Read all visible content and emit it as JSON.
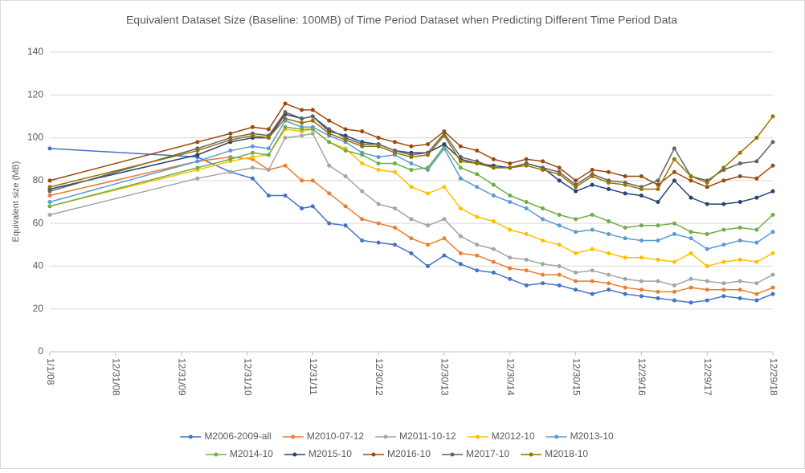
{
  "chart_data": {
    "type": "line",
    "title": "Equivalent  Dataset Size (Baseline: 100MB) of Time Period Dataset when Predicting Different Time Period Data",
    "y_label": "Equivalent size (MB)",
    "x": [
      "2008-01-01",
      "2010-03-31",
      "2010-09-30",
      "2011-01-31",
      "2011-04-30",
      "2011-07-31",
      "2011-10-31",
      "2011-12-31",
      "2012-03-31",
      "2012-06-30",
      "2012-09-30",
      "2012-12-30",
      "2013-03-31",
      "2013-06-30",
      "2013-09-30",
      "2013-12-30",
      "2014-03-31",
      "2014-06-30",
      "2014-09-30",
      "2014-12-30",
      "2015-03-31",
      "2015-06-30",
      "2015-09-30",
      "2015-12-30",
      "2016-03-31",
      "2016-06-30",
      "2016-09-30",
      "2016-12-29",
      "2017-03-31",
      "2017-06-30",
      "2017-09-30",
      "2017-12-29",
      "2018-03-31",
      "2018-06-30",
      "2018-09-30",
      "2018-12-29"
    ],
    "xlim": [
      "2008-01-01",
      "2018-12-29"
    ],
    "xticks": [
      {
        "value": "2008-01-01",
        "label": "1/1/08"
      },
      {
        "value": "2008-12-31",
        "label": "12/31/08"
      },
      {
        "value": "2009-12-31",
        "label": "12/31/09"
      },
      {
        "value": "2010-12-31",
        "label": "12/31/10"
      },
      {
        "value": "2011-12-31",
        "label": "12/31/11"
      },
      {
        "value": "2012-12-30",
        "label": "12/30/12"
      },
      {
        "value": "2013-12-30",
        "label": "12/30/13"
      },
      {
        "value": "2014-12-30",
        "label": "12/30/14"
      },
      {
        "value": "2015-12-30",
        "label": "12/30/15"
      },
      {
        "value": "2016-12-29",
        "label": "12/29/16"
      },
      {
        "value": "2017-12-29",
        "label": "12/29/17"
      },
      {
        "value": "2018-12-29",
        "label": "12/29/18"
      }
    ],
    "ylim": [
      0,
      140
    ],
    "yticks": [
      0,
      20,
      40,
      60,
      80,
      100,
      120,
      140
    ],
    "grid": true,
    "legend": "bottom",
    "series": [
      {
        "name": "M2006-2009-all",
        "color": "#4472c4",
        "values": [
          95,
          91,
          84,
          81,
          73,
          73,
          67,
          68,
          60,
          59,
          52,
          51,
          50,
          46,
          40,
          45,
          41,
          38,
          37,
          34,
          31,
          32,
          31,
          29,
          27,
          29,
          27,
          26,
          25,
          24,
          23,
          24,
          26,
          25,
          24,
          27
        ]
      },
      {
        "name": "M2010-07-12",
        "color": "#ed7d31",
        "values": [
          73,
          89,
          91,
          90,
          85,
          87,
          80,
          80,
          74,
          68,
          62,
          60,
          58,
          53,
          50,
          53,
          46,
          45,
          42,
          39,
          38,
          36,
          36,
          33,
          33,
          32,
          30,
          29,
          28,
          28,
          30,
          29,
          29,
          29,
          27,
          30
        ]
      },
      {
        "name": "M2011-10-12",
        "color": "#a5a5a5",
        "values": [
          64,
          81,
          84,
          86,
          85,
          100,
          101,
          102,
          87,
          82,
          75,
          69,
          67,
          62,
          59,
          62,
          54,
          50,
          48,
          44,
          43,
          41,
          40,
          37,
          38,
          36,
          34,
          33,
          33,
          31,
          34,
          33,
          32,
          33,
          32,
          36
        ]
      },
      {
        "name": "M2012-10",
        "color": "#ffc000",
        "values": [
          68,
          85,
          89,
          91,
          92,
          104,
          103,
          104,
          98,
          95,
          88,
          85,
          84,
          77,
          74,
          77,
          67,
          63,
          61,
          57,
          55,
          52,
          50,
          46,
          48,
          46,
          44,
          44,
          43,
          42,
          46,
          40,
          42,
          43,
          42,
          46
        ]
      },
      {
        "name": "M2013-10",
        "color": "#5b9bd5",
        "values": [
          70,
          89,
          94,
          96,
          95,
          108,
          105,
          105,
          101,
          98,
          93,
          91,
          92,
          88,
          85,
          95,
          81,
          77,
          73,
          70,
          67,
          62,
          59,
          56,
          57,
          55,
          53,
          52,
          52,
          55,
          53,
          48,
          50,
          52,
          51,
          56
        ]
      },
      {
        "name": "M2014-10",
        "color": "#70ad47",
        "values": [
          68,
          86,
          90,
          93,
          92,
          105,
          104,
          104,
          98,
          94,
          92,
          88,
          88,
          85,
          86,
          96,
          86,
          83,
          78,
          73,
          70,
          67,
          64,
          62,
          64,
          61,
          58,
          59,
          59,
          60,
          56,
          55,
          57,
          58,
          57,
          64
        ]
      },
      {
        "name": "M2015-10",
        "color": "#264478",
        "values": [
          76,
          92,
          98,
          100,
          100,
          111,
          109,
          110,
          103,
          101,
          98,
          97,
          94,
          93,
          93,
          97,
          90,
          88,
          87,
          86,
          88,
          86,
          80,
          75,
          78,
          76,
          74,
          73,
          70,
          80,
          72,
          69,
          69,
          70,
          72,
          75
        ]
      },
      {
        "name": "M2016-10",
        "color": "#9e480e",
        "values": [
          80,
          98,
          102,
          105,
          104,
          116,
          113,
          113,
          108,
          104,
          103,
          100,
          98,
          96,
          97,
          103,
          96,
          94,
          90,
          88,
          90,
          89,
          86,
          80,
          85,
          84,
          82,
          82,
          78,
          84,
          80,
          77,
          80,
          82,
          81,
          87
        ]
      },
      {
        "name": "M2017-10",
        "color": "#636363",
        "values": [
          75,
          95,
          100,
          102,
          101,
          112,
          109,
          110,
          104,
          100,
          97,
          97,
          94,
          92,
          93,
          102,
          91,
          89,
          86,
          86,
          88,
          86,
          84,
          78,
          83,
          80,
          79,
          77,
          80,
          95,
          82,
          80,
          85,
          88,
          89,
          98
        ]
      },
      {
        "name": "M2018-10",
        "color": "#997300",
        "values": [
          77,
          94,
          99,
          101,
          100,
          109,
          107,
          108,
          102,
          99,
          96,
          96,
          93,
          91,
          92,
          101,
          89,
          88,
          86,
          86,
          87,
          85,
          83,
          77,
          82,
          79,
          78,
          76,
          76,
          90,
          82,
          79,
          86,
          93,
          100,
          110
        ]
      }
    ]
  }
}
